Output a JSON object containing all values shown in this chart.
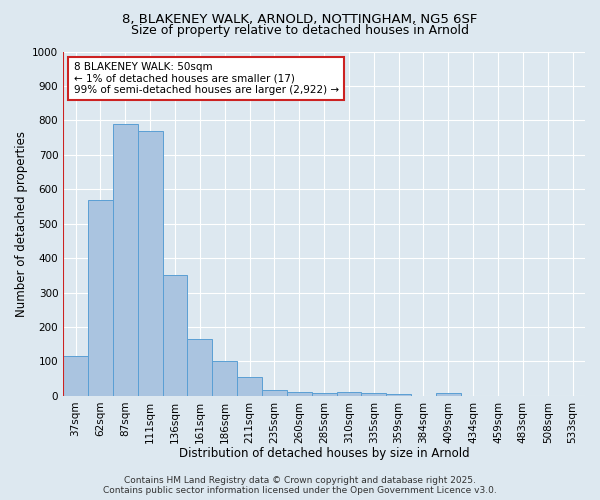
{
  "title_line1": "8, BLAKENEY WALK, ARNOLD, NOTTINGHAM, NG5 6SF",
  "title_line2": "Size of property relative to detached houses in Arnold",
  "xlabel": "Distribution of detached houses by size in Arnold",
  "ylabel": "Number of detached properties",
  "bar_labels": [
    "37sqm",
    "62sqm",
    "87sqm",
    "111sqm",
    "136sqm",
    "161sqm",
    "186sqm",
    "211sqm",
    "235sqm",
    "260sqm",
    "285sqm",
    "310sqm",
    "335sqm",
    "359sqm",
    "384sqm",
    "409sqm",
    "434sqm",
    "459sqm",
    "483sqm",
    "508sqm",
    "533sqm"
  ],
  "bar_values": [
    115,
    570,
    790,
    770,
    350,
    165,
    100,
    55,
    18,
    12,
    7,
    10,
    7,
    4,
    0,
    8,
    0,
    0,
    0,
    0,
    0
  ],
  "bar_color": "#aac4e0",
  "bar_edge_color": "#5a9fd4",
  "highlight_color": "#cc2222",
  "annotation_text": "8 BLAKENEY WALK: 50sqm\n← 1% of detached houses are smaller (17)\n99% of semi-detached houses are larger (2,922) →",
  "annotation_box_color": "#ffffff",
  "annotation_box_edge": "#cc2222",
  "ylim": [
    0,
    1000
  ],
  "yticks": [
    0,
    100,
    200,
    300,
    400,
    500,
    600,
    700,
    800,
    900,
    1000
  ],
  "bg_color": "#dde8f0",
  "grid_color": "#ffffff",
  "footer_line1": "Contains HM Land Registry data © Crown copyright and database right 2025.",
  "footer_line2": "Contains public sector information licensed under the Open Government Licence v3.0.",
  "title_fontsize": 9.5,
  "subtitle_fontsize": 9,
  "axis_label_fontsize": 8.5,
  "tick_fontsize": 7.5,
  "annotation_fontsize": 7.5,
  "footer_fontsize": 6.5
}
